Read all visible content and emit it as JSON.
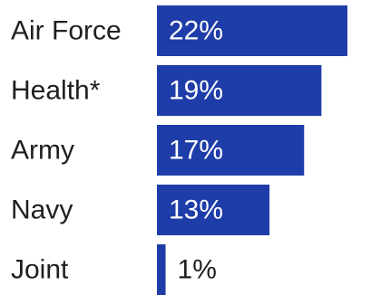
{
  "chart_data": {
    "type": "bar",
    "orientation": "horizontal",
    "categories": [
      "Air Force",
      "Health*",
      "Army",
      "Navy",
      "Joint"
    ],
    "values": [
      22,
      19,
      17,
      13,
      1
    ],
    "value_labels": [
      "22%",
      "19%",
      "17%",
      "13%",
      "1%"
    ],
    "unit": "%",
    "title": "",
    "xlabel": "",
    "ylabel": "",
    "xlim": [
      0,
      22
    ],
    "grid": false,
    "legend": "none",
    "colors": {
      "bar": "#1e3da8",
      "label_inside": "#ffffff",
      "label_outside": "#1f1f1f",
      "category_text": "#1f1f1f"
    }
  }
}
